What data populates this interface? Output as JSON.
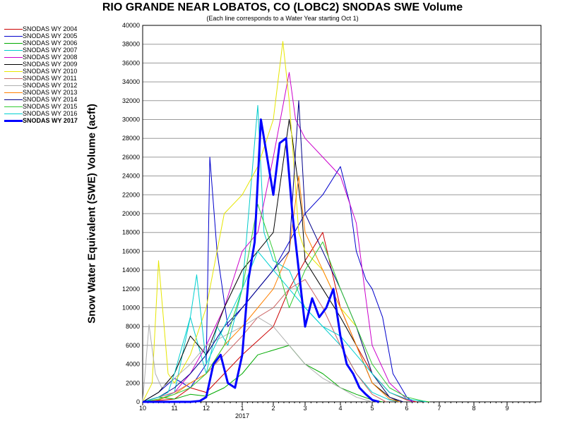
{
  "chart_data": {
    "type": "line",
    "title": "RIO GRANDE NEAR LOBATOS, CO (LOBC2) SNODAS SWE Volume",
    "subtitle": "(Each line corresponds to a Water Year starting Oct 1)",
    "ylabel": "Snow Water Equivalent (SWE) Volume (acft)",
    "xlabel": "",
    "ylim": [
      0,
      40000
    ],
    "yticks": [
      0,
      2000,
      4000,
      6000,
      8000,
      10000,
      12000,
      14000,
      16000,
      18000,
      20000,
      22000,
      24000,
      26000,
      28000,
      30000,
      32000,
      34000,
      36000,
      38000,
      40000
    ],
    "xlim": [
      10,
      10.95
    ],
    "xticks": [
      {
        "value": 10,
        "label": "10"
      },
      {
        "value": 11,
        "label": "11"
      },
      {
        "value": 12,
        "label": "12"
      },
      {
        "value": 1,
        "label": "1"
      },
      {
        "value": 2,
        "label": "2"
      },
      {
        "value": 3,
        "label": "3"
      },
      {
        "value": 4,
        "label": "4"
      },
      {
        "value": 5,
        "label": "5"
      },
      {
        "value": 6,
        "label": "6"
      },
      {
        "value": 7,
        "label": "7"
      },
      {
        "value": 8,
        "label": "8"
      },
      {
        "value": 9,
        "label": "9"
      }
    ],
    "year_label": "2017",
    "grid": true,
    "legend_position": "left",
    "series": [
      {
        "name": "SNODAS WY 2004",
        "color": "#cc0000",
        "bold": false,
        "x": [
          10.0,
          11.0,
          11.5,
          12.0,
          12.5,
          1.0,
          1.5,
          2.0,
          2.5,
          3.0,
          3.5,
          4.0,
          4.5,
          5.0,
          5.5,
          6.0,
          6.3
        ],
        "y": [
          0,
          300,
          1500,
          1000,
          3000,
          5000,
          6500,
          8000,
          12000,
          15000,
          18000,
          10000,
          6000,
          3000,
          1000,
          200,
          0
        ]
      },
      {
        "name": "SNODAS WY 2005",
        "color": "#0000cc",
        "bold": false,
        "x": [
          10.0,
          10.5,
          11.0,
          11.5,
          12.0,
          12.1,
          12.3,
          12.6,
          1.0,
          1.5,
          2.0,
          2.5,
          3.0,
          3.5,
          4.0,
          4.3,
          4.5,
          4.8,
          5.0,
          5.3,
          5.6,
          6.0,
          6.2
        ],
        "y": [
          0,
          1000,
          2500,
          1500,
          4000,
          26000,
          16000,
          8000,
          10000,
          12000,
          14000,
          17000,
          20000,
          22000,
          25000,
          21000,
          16000,
          13000,
          12000,
          9000,
          3000,
          500,
          0
        ]
      },
      {
        "name": "SNODAS WY 2006",
        "color": "#00aa00",
        "bold": false,
        "x": [
          10.0,
          10.5,
          11.0,
          11.5,
          12.0,
          12.5,
          1.0,
          1.5,
          2.0,
          2.5,
          3.0,
          3.5,
          4.0,
          4.5,
          5.0,
          5.3
        ],
        "y": [
          0,
          500,
          300,
          800,
          600,
          1500,
          3000,
          5000,
          5500,
          6000,
          4000,
          3000,
          1500,
          800,
          200,
          0
        ]
      },
      {
        "name": "SNODAS WY 2007",
        "color": "#00cccc",
        "bold": false,
        "x": [
          10.0,
          10.5,
          11.0,
          11.5,
          12.0,
          12.3,
          12.6,
          1.0,
          1.5,
          1.7,
          2.0,
          2.5,
          3.0,
          3.5,
          4.0,
          4.5,
          5.0,
          5.5,
          5.8
        ],
        "y": [
          0,
          200,
          1000,
          9000,
          3000,
          8000,
          6000,
          12000,
          31500,
          18000,
          15000,
          14000,
          10000,
          8000,
          6000,
          3000,
          1000,
          200,
          0
        ]
      },
      {
        "name": "SNODAS WY 2008",
        "color": "#cc00cc",
        "bold": false,
        "x": [
          10.0,
          10.5,
          11.0,
          11.5,
          12.0,
          12.5,
          1.0,
          1.5,
          2.0,
          2.5,
          2.7,
          3.0,
          3.5,
          4.0,
          4.5,
          4.8,
          5.0,
          5.5,
          6.0,
          6.2
        ],
        "y": [
          0,
          500,
          1000,
          3000,
          6000,
          10000,
          16000,
          18000,
          26000,
          35000,
          30000,
          28000,
          26000,
          24000,
          19000,
          11000,
          6000,
          2000,
          300,
          0
        ]
      },
      {
        "name": "SNODAS WY 2009",
        "color": "#000000",
        "bold": false,
        "x": [
          10.0,
          10.5,
          11.0,
          11.5,
          12.0,
          12.5,
          1.0,
          1.5,
          2.0,
          2.5,
          2.6,
          2.9,
          3.0,
          3.5,
          4.0,
          4.5,
          5.0,
          5.5,
          5.8
        ],
        "y": [
          0,
          1000,
          3000,
          7000,
          5000,
          10000,
          14000,
          16000,
          18000,
          30000,
          28000,
          20000,
          15000,
          12000,
          9000,
          6000,
          2000,
          500,
          0
        ]
      },
      {
        "name": "SNODAS WY 2010",
        "color": "#e6e600",
        "bold": false,
        "x": [
          10.0,
          10.3,
          10.5,
          10.8,
          11.0,
          11.5,
          12.0,
          12.5,
          1.0,
          1.5,
          2.0,
          2.3,
          2.5,
          2.8,
          3.0,
          3.5,
          4.0,
          4.5,
          5.0,
          5.5,
          5.9
        ],
        "y": [
          0,
          2000,
          15000,
          3000,
          2000,
          5000,
          10000,
          20000,
          22000,
          25000,
          30000,
          38300,
          32000,
          18000,
          16000,
          14000,
          10000,
          8000,
          3000,
          500,
          0
        ]
      },
      {
        "name": "SNODAS WY 2011",
        "color": "#cc6666",
        "bold": false,
        "x": [
          10.0,
          10.5,
          11.0,
          11.5,
          12.0,
          12.5,
          1.0,
          1.5,
          2.0,
          2.5,
          3.0,
          3.5,
          4.0,
          4.5,
          5.0,
          5.4
        ],
        "y": [
          0,
          500,
          1000,
          2000,
          3000,
          5000,
          7000,
          9000,
          10000,
          12000,
          13000,
          10000,
          6000,
          3000,
          800,
          0
        ]
      },
      {
        "name": "SNODAS WY 2012",
        "color": "#b0b0b0",
        "bold": false,
        "x": [
          10.0,
          10.2,
          10.4,
          10.6,
          11.0,
          11.5,
          12.0,
          12.5,
          1.0,
          1.5,
          2.0,
          2.5,
          3.0,
          3.5,
          4.0,
          4.5,
          5.0
        ],
        "y": [
          0,
          8200,
          3000,
          1500,
          2500,
          4000,
          6000,
          7000,
          8000,
          9000,
          8000,
          6000,
          4000,
          2500,
          1500,
          500,
          0
        ]
      },
      {
        "name": "SNODAS WY 2013",
        "color": "#ff8000",
        "bold": false,
        "x": [
          10.0,
          10.5,
          11.0,
          11.5,
          12.0,
          12.5,
          1.0,
          1.5,
          2.0,
          2.5,
          2.8,
          3.0,
          3.5,
          4.0,
          4.5,
          5.0,
          5.5,
          5.8
        ],
        "y": [
          0,
          200,
          800,
          2000,
          3000,
          6000,
          8000,
          10000,
          12000,
          16000,
          24000,
          18000,
          14000,
          10000,
          6000,
          2000,
          300,
          0
        ]
      },
      {
        "name": "SNODAS WY 2014",
        "color": "#00008b",
        "bold": false,
        "x": [
          10.0,
          10.5,
          11.0,
          11.5,
          12.0,
          12.5,
          1.0,
          1.5,
          2.0,
          2.5,
          2.8,
          3.0,
          3.5,
          4.0,
          4.5,
          5.0,
          5.5,
          5.9
        ],
        "y": [
          0,
          500,
          1500,
          3000,
          5000,
          8000,
          10000,
          12000,
          14000,
          16000,
          32000,
          20000,
          16000,
          12000,
          8000,
          3000,
          500,
          0
        ]
      },
      {
        "name": "SNODAS WY 2015",
        "color": "#33cc33",
        "bold": false,
        "x": [
          10.0,
          10.5,
          11.0,
          11.5,
          12.0,
          12.5,
          1.0,
          1.5,
          2.0,
          2.5,
          3.0,
          3.5,
          4.0,
          4.5,
          5.0,
          5.5,
          6.0,
          6.5,
          6.7
        ],
        "y": [
          0,
          300,
          800,
          1500,
          3000,
          6000,
          12000,
          21000,
          16000,
          10000,
          14000,
          17000,
          12000,
          8000,
          4000,
          1500,
          500,
          100,
          0
        ]
      },
      {
        "name": "SNODAS WY 2016",
        "color": "#00d0d0",
        "bold": false,
        "x": [
          10.0,
          10.5,
          10.8,
          11.0,
          11.5,
          11.7,
          12.0,
          12.5,
          1.0,
          1.5,
          2.0,
          2.5,
          3.0,
          3.5,
          4.0,
          4.5,
          5.0,
          5.5,
          6.0,
          6.5,
          6.6
        ],
        "y": [
          0,
          500,
          1000,
          3000,
          9000,
          13500,
          4000,
          8000,
          12000,
          16000,
          14000,
          12000,
          10000,
          8000,
          7000,
          5000,
          3000,
          1000,
          300,
          50,
          0
        ]
      },
      {
        "name": "SNODAS WY 2017",
        "color": "#0000ff",
        "bold": true,
        "x": [
          10.0,
          10.5,
          11.0,
          11.5,
          11.8,
          12.0,
          12.2,
          12.4,
          12.6,
          12.8,
          1.0,
          1.2,
          1.4,
          1.6,
          1.8,
          2.0,
          2.2,
          2.4,
          2.6,
          2.8,
          3.0,
          3.2,
          3.4,
          3.6,
          3.8,
          4.0,
          4.2,
          4.4,
          4.6,
          4.8,
          5.0,
          5.2
        ],
        "y": [
          0,
          0,
          0,
          0,
          100,
          500,
          4000,
          5000,
          2000,
          1500,
          5000,
          13000,
          17000,
          30000,
          26000,
          22000,
          27500,
          28000,
          20000,
          14000,
          8000,
          11000,
          9000,
          10000,
          12000,
          7000,
          4000,
          3000,
          1500,
          800,
          200,
          0
        ]
      }
    ]
  }
}
